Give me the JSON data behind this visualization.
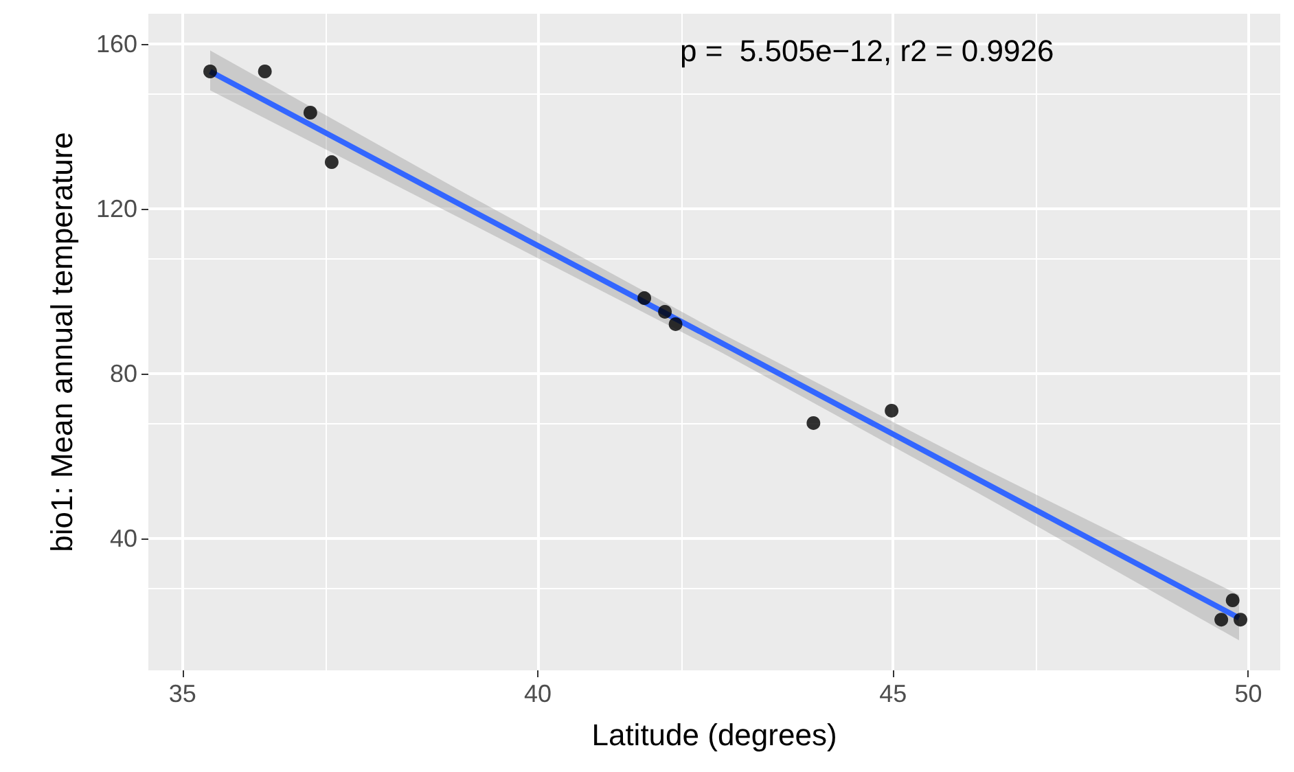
{
  "chart_data": {
    "type": "scatter",
    "xlabel": "Latitude (degrees)",
    "ylabel": "bio1: Mean annual temperature",
    "annotations": [
      "p =  5.505e−12, r2 = 0.9926"
    ],
    "series": [
      {
        "marker": "circle",
        "color": "#000000",
        "x": [
          35.39,
          36.16,
          36.8,
          37.1,
          41.5,
          41.79,
          41.94,
          43.88,
          44.98,
          49.62,
          49.78,
          49.89
        ],
        "values": [
          153.3,
          153.3,
          143.3,
          131.3,
          98.3,
          95,
          92,
          68,
          71,
          20.3,
          25,
          20.3
        ]
      },
      {
        "type": "line",
        "marker": "none",
        "color": "#3366ff",
        "x": [
          35.39,
          39,
          42.6,
          46.2,
          49.87
        ],
        "values": [
          153.3,
          120.2,
          87.3,
          54.3,
          20.7
        ],
        "lower": [
          148.7,
          116.9,
          85,
          51,
          15.3
        ],
        "upper": [
          158.4,
          123.5,
          89.6,
          57.6,
          26.3
        ]
      }
    ],
    "xlim": [
      34.52,
      50.45
    ],
    "xticks": [
      35,
      40,
      45,
      50
    ],
    "ylim": [
      8,
      167.3
    ],
    "yticks": [
      40,
      80,
      120,
      160
    ],
    "grid": true,
    "line_style": "solid"
  }
}
